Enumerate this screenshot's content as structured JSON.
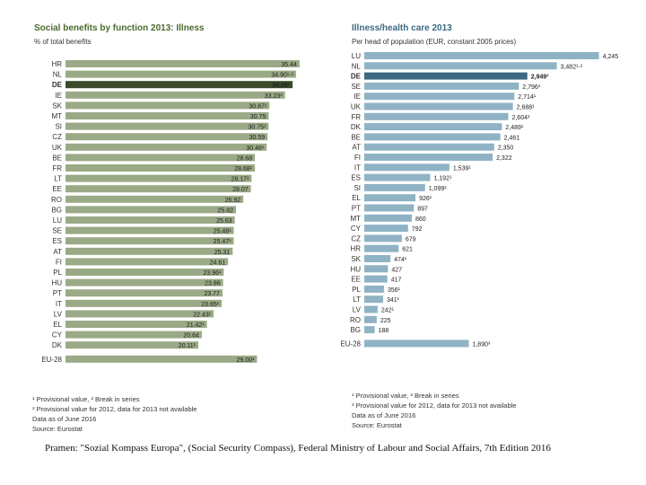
{
  "chart_data": [
    {
      "type": "bar",
      "orientation": "horizontal",
      "title": "Social benefits by function 2013: Illness",
      "subtitle": "% of total benefits",
      "accent_color": "#9aaa86",
      "highlight_color": "#3a4a2a",
      "highlight_category": "DE",
      "categories": [
        "HR",
        "NL",
        "DE",
        "IE",
        "SK",
        "MT",
        "SI",
        "CZ",
        "UK",
        "BE",
        "FR",
        "LT",
        "EE",
        "RO",
        "BG",
        "LU",
        "SE",
        "ES",
        "AT",
        "FI",
        "PL",
        "HU",
        "PT",
        "IT",
        "LV",
        "EL",
        "CY",
        "DK",
        "EU-28"
      ],
      "values": [
        35.44,
        34.9,
        34.39,
        33.23,
        30.87,
        30.75,
        30.75,
        30.59,
        30.46,
        28.68,
        28.68,
        28.17,
        28.07,
        26.92,
        25.82,
        25.63,
        25.48,
        25.47,
        25.31,
        24.61,
        23.96,
        23.86,
        23.77,
        23.65,
        22.43,
        21.42,
        20.64,
        20.11,
        29.0
      ],
      "value_labels": [
        "35.44",
        "34.90¹·²",
        "34.39²",
        "33.23³",
        "30.87¹",
        "30.75",
        "30.75¹",
        "30.59",
        "30.46¹",
        "28.68",
        "28.68¹",
        "28.17¹",
        "28.07",
        "26.92",
        "25.82",
        "25.63",
        "25.48¹",
        "25.47¹",
        "25.31",
        "24.61",
        "23.96¹",
        "23.86",
        "23.77",
        "23.65¹",
        "22.43¹",
        "21.42¹",
        "20.64",
        "20.11¹",
        "29.00¹"
      ],
      "xlim": [
        0,
        36
      ],
      "footnotes": [
        "¹ Provisional value, ² Break in series",
        "³ Provisional value for 2012, data for 2013 not available",
        "Data as of June 2016",
        "Source: Eurostat"
      ]
    },
    {
      "type": "bar",
      "orientation": "horizontal",
      "title": "Illness/health care 2013",
      "subtitle": "Per head of population (EUR, constant 2005 prices)",
      "accent_color": "#8fb3c5",
      "highlight_color": "#3d6a82",
      "highlight_category": "DE",
      "categories": [
        "LU",
        "NL",
        "DE",
        "SE",
        "IE",
        "UK",
        "FR",
        "DK",
        "BE",
        "AT",
        "FI",
        "IT",
        "ES",
        "SI",
        "EL",
        "PT",
        "MT",
        "CY",
        "CZ",
        "HR",
        "SK",
        "HU",
        "EE",
        "PL",
        "LT",
        "LV",
        "RO",
        "BG",
        "EU-28"
      ],
      "values": [
        4245,
        3482,
        2949,
        2796,
        2714,
        2688,
        2604,
        2489,
        2461,
        2350,
        2322,
        1539,
        1192,
        1099,
        926,
        897,
        860,
        792,
        679,
        621,
        474,
        427,
        417,
        356,
        341,
        242,
        225,
        188,
        1890
      ],
      "value_labels": [
        "4,245",
        "3,482¹·²",
        "2,949¹",
        "2,796¹",
        "2,714¹",
        "2,688¹",
        "2,604¹",
        "2,489¹",
        "2,461",
        "2,350",
        "2,322",
        "1,539¹",
        "1,192¹",
        "1,099¹",
        "926¹",
        "897",
        "860",
        "792",
        "679",
        "621",
        "474¹",
        "427",
        "417",
        "356¹",
        "341¹",
        "242¹",
        "225",
        "188",
        "1,890³"
      ],
      "xlim": [
        0,
        4300
      ],
      "footnotes": [
        "¹ Provisional value, ² Break in series",
        "³ Provisional value for 2012, data for 2013 not available",
        "Data as of June 2016",
        "Source: Eurostat"
      ]
    }
  ],
  "caption": "Pramen: \"Sozial Kompass Europa\", (Social Security Compass), Federal Ministry of Labour and Social Affairs, 7th Edition 2016"
}
